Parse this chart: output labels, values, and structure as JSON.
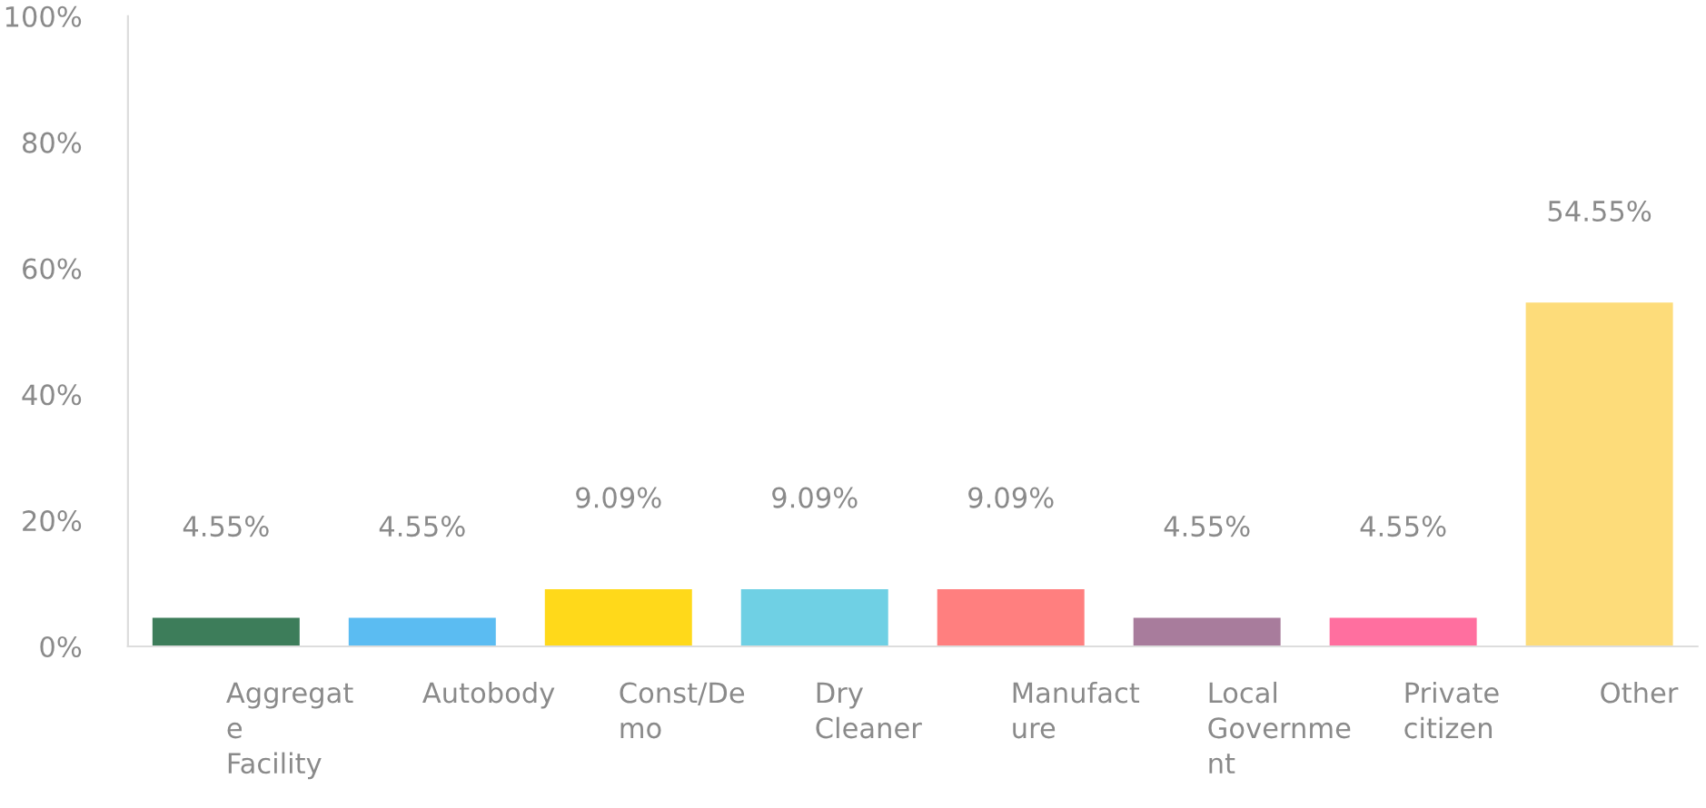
{
  "chart_data": {
    "type": "bar",
    "categories": [
      "Aggregate Facility",
      "Autobody",
      "Const/Demo",
      "Dry Cleaner",
      "Manufacture",
      "Local Government",
      "Private citizen",
      "Other"
    ],
    "values": [
      4.55,
      4.55,
      9.09,
      9.09,
      9.09,
      4.55,
      4.55,
      54.55
    ],
    "value_labels": [
      "4.55%",
      "4.55%",
      "9.09%",
      "9.09%",
      "9.09%",
      "4.55%",
      "4.55%",
      "54.55%"
    ],
    "colors": [
      "#3d7d5a",
      "#5bbcf2",
      "#ffd91a",
      "#6fd0e4",
      "#ff7f7f",
      "#a87c9c",
      "#ff6f9f",
      "#fddc7a"
    ],
    "ylim": [
      0,
      100
    ],
    "yticks": [
      {
        "value": 0,
        "label": "0%"
      },
      {
        "value": 20,
        "label": "20%"
      },
      {
        "value": 40,
        "label": "40%"
      },
      {
        "value": 60,
        "label": "60%"
      },
      {
        "value": 80,
        "label": "80%"
      },
      {
        "value": 100,
        "label": "100%"
      }
    ],
    "grid": false,
    "legend": false
  }
}
